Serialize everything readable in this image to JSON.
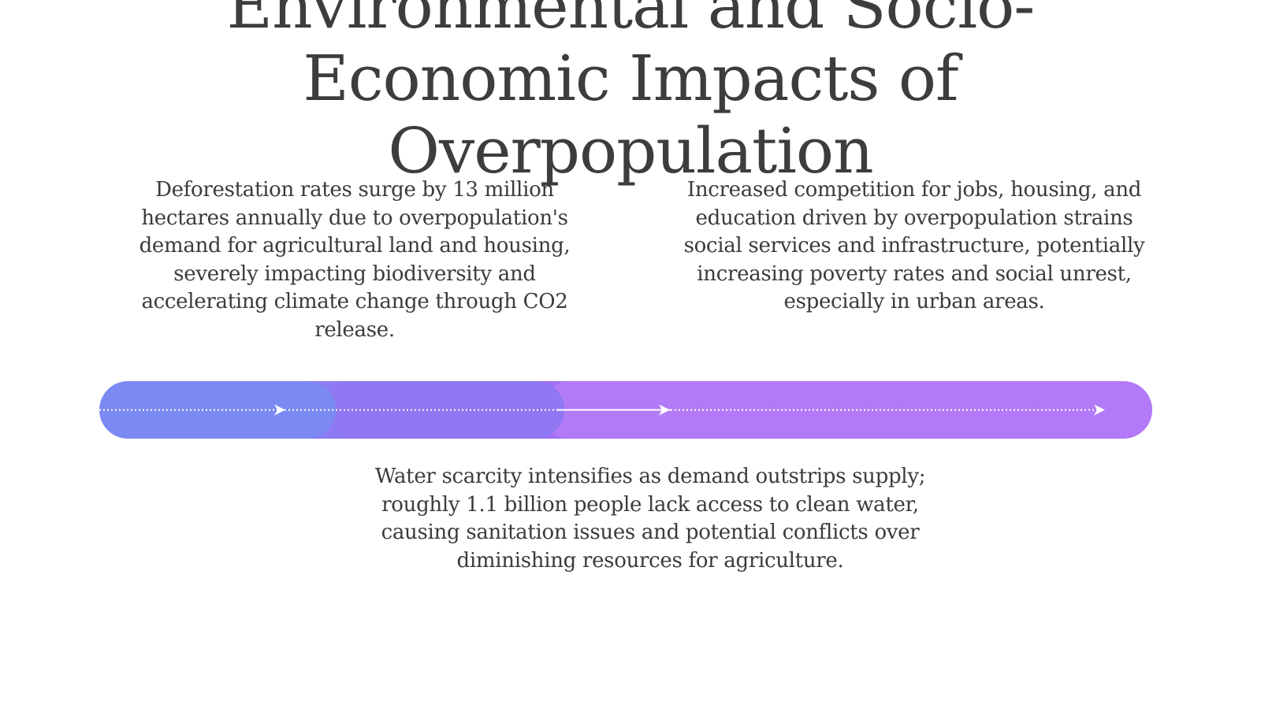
{
  "title": {
    "line1": "Environmental and Socio-",
    "line2": "Economic Impacts of",
    "line3": "Overpopulation"
  },
  "points": {
    "left": "Deforestation rates surge by 13 million hectares annually due to overpopulation's demand for agricultural land and housing, severely impacting biodiversity and accelerating climate change through CO2 release.",
    "right": "Increased competition for jobs, housing, and education driven by overpopulation strains social services and infrastructure, potentially increasing poverty rates and social unrest, especially in urban areas.",
    "bottom": "Water scarcity intensifies as demand outstrips supply; roughly 1.1 billion people lack access to clean water, causing sanitation issues and potential conflicts over diminishing resources for agriculture."
  },
  "colors": {
    "timeline_start": "#7b8af3",
    "timeline_mid": "#8f78f2",
    "timeline_end": "#b87cf5",
    "text": "#3b3b3b"
  }
}
